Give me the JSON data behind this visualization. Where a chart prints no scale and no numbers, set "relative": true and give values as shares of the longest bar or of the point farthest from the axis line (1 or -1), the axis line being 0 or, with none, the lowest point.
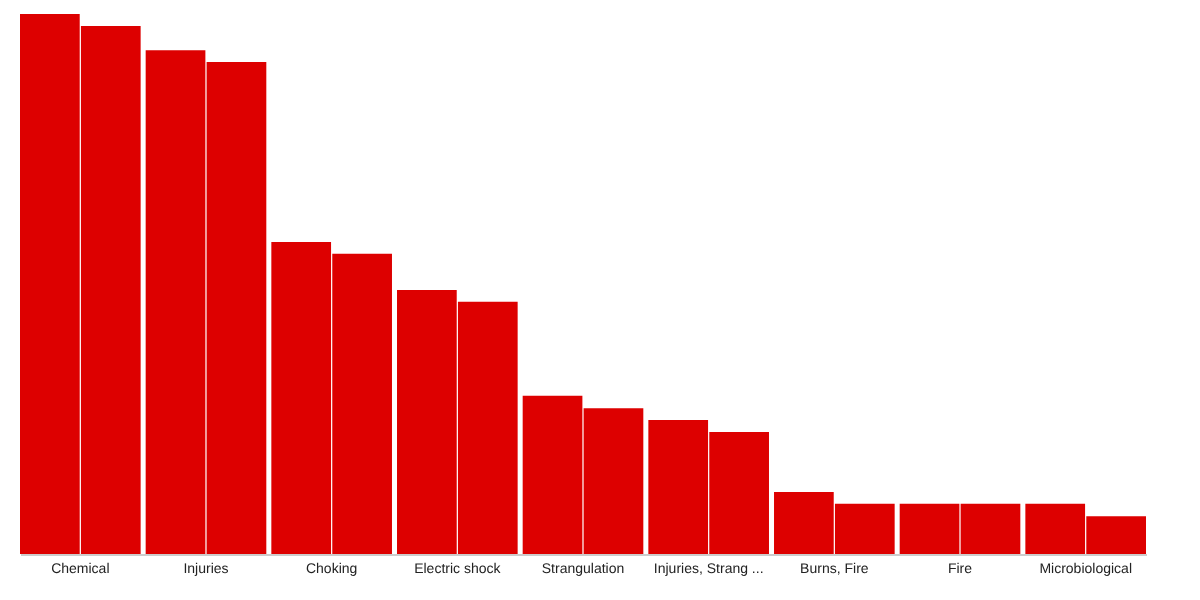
{
  "chart_data": {
    "type": "bar",
    "relative": true,
    "grid": false,
    "categories": [
      "Chemical",
      "Injuries",
      "Choking",
      "Electric shock",
      "Strangulation",
      "Injuries, Strang ...",
      "Burns, Fire",
      "Fire",
      "Microbiological"
    ],
    "series": [
      {
        "color": "#dd0000",
        "values": [
          1,
          0.933,
          0.578,
          0.489,
          0.293,
          0.248,
          0.115,
          0.093,
          0.093
        ]
      },
      {
        "color": "#dd0000",
        "values": [
          0.978,
          0.911,
          0.556,
          0.467,
          0.27,
          0.226,
          0.093,
          0.093,
          0.07
        ]
      }
    ]
  }
}
